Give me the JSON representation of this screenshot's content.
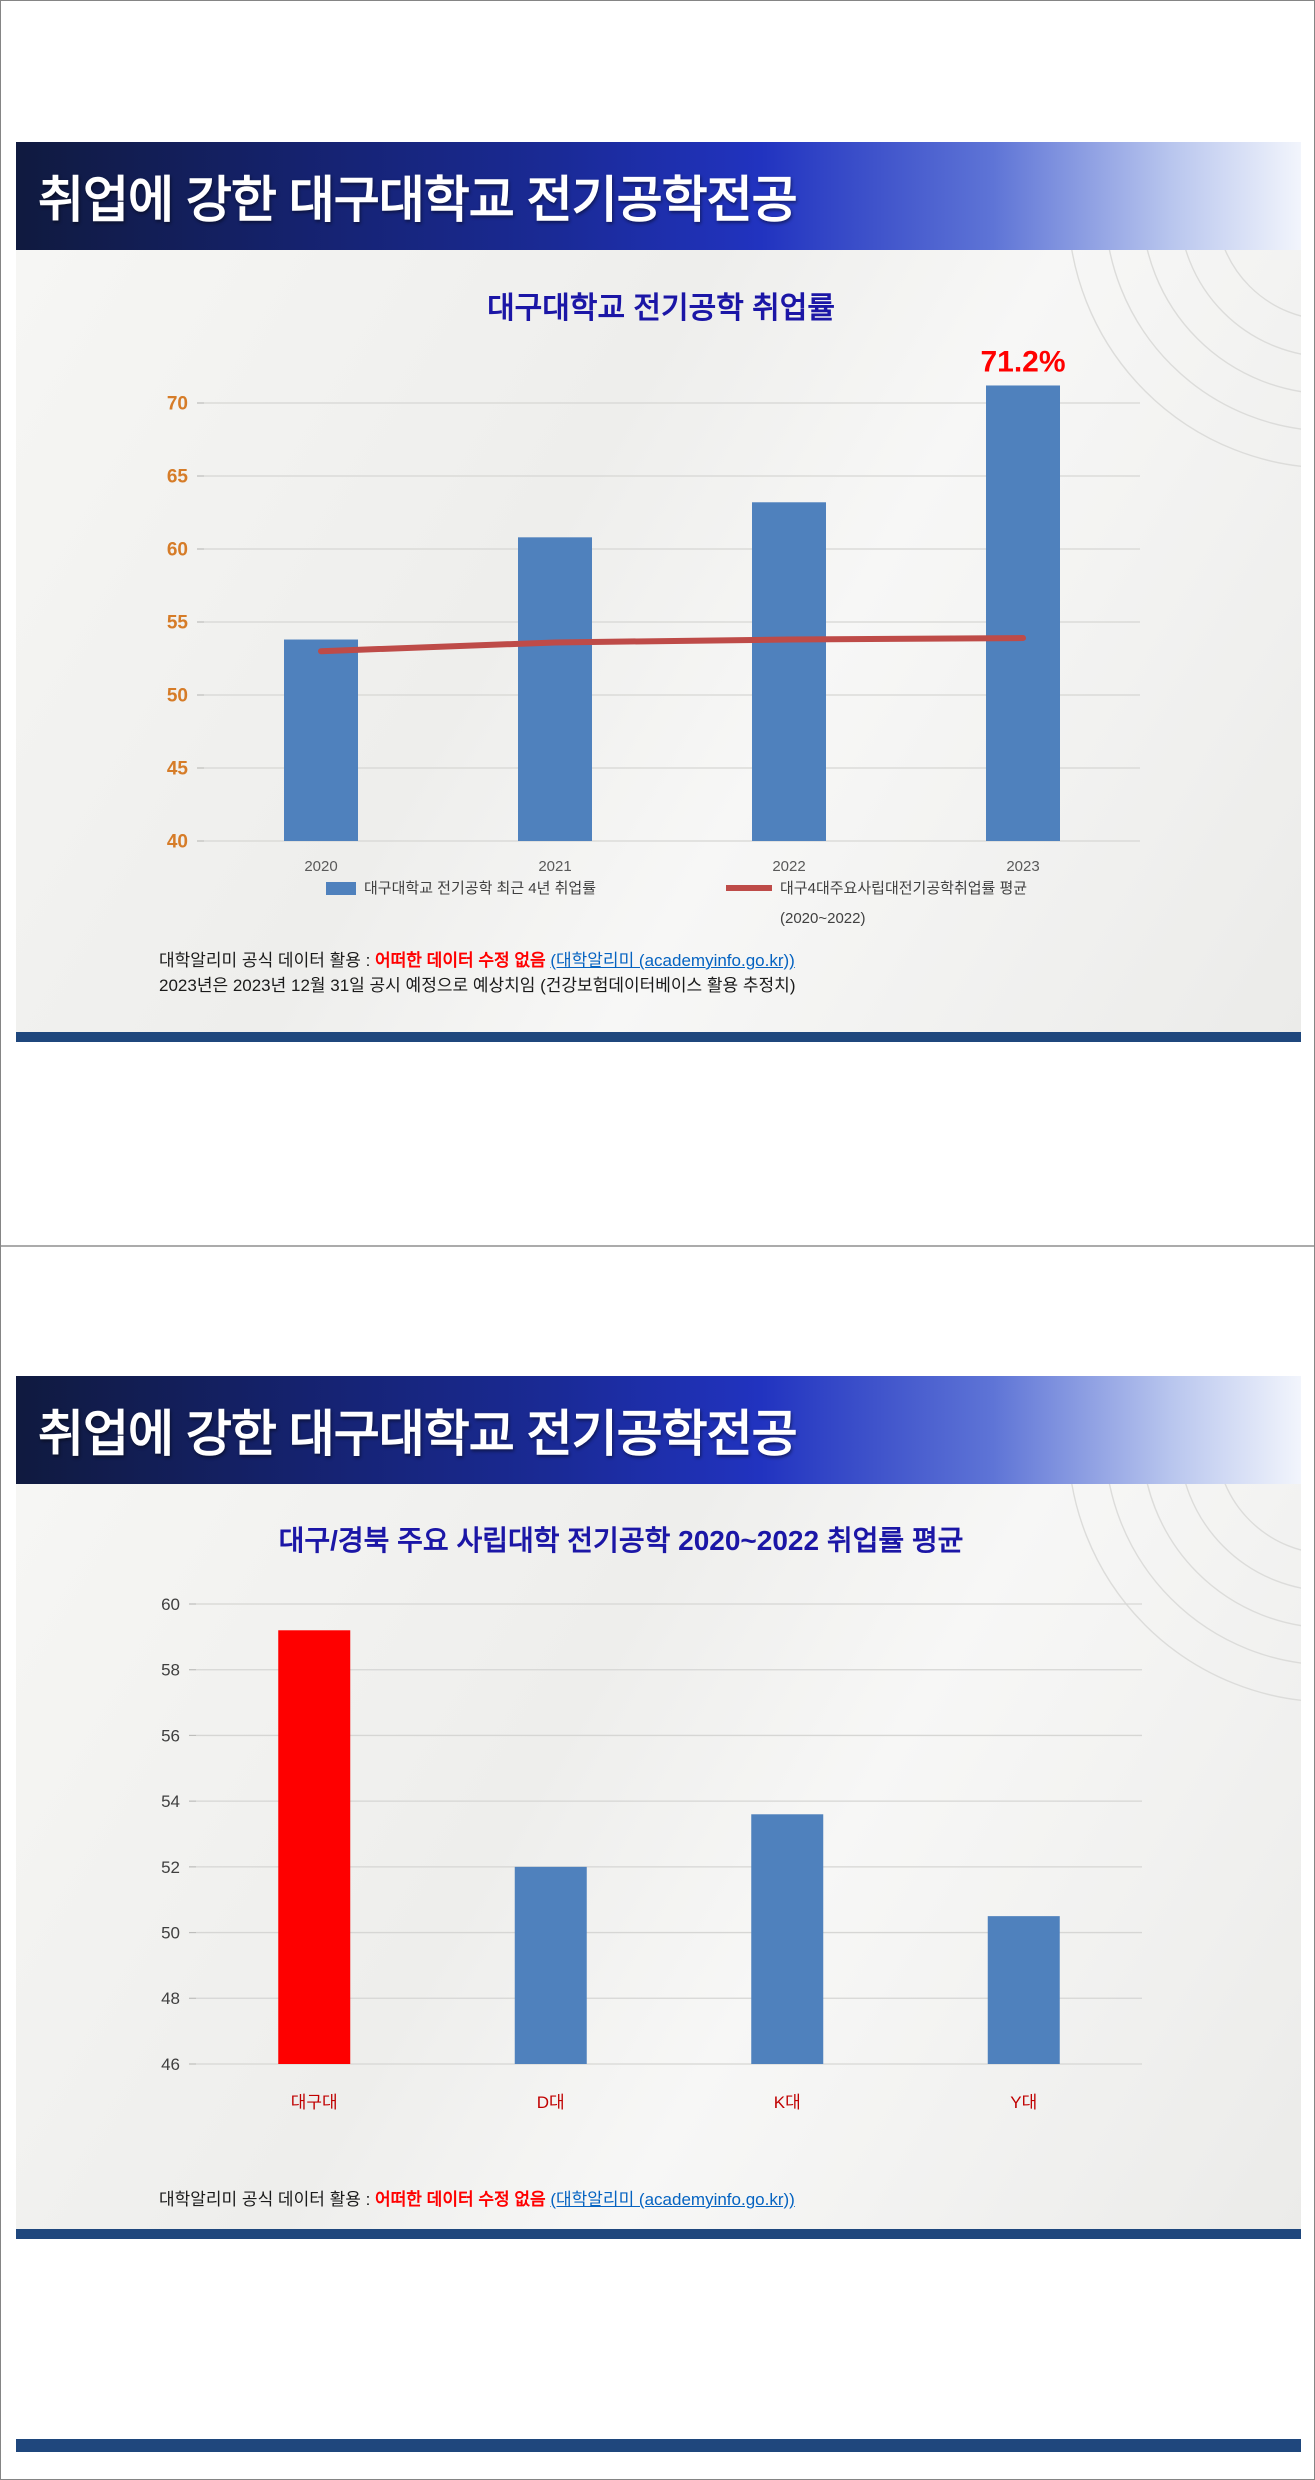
{
  "slides": [
    {
      "banner_title": "취업에 강한 대구대학교 전기공학전공",
      "footnote": {
        "prefix": "대학알리미 공식 데이터 활용 : ",
        "emphasis": "어떠한 데이터 수정 없음",
        "link": "(대학알리미 (academyinfo.go.kr))",
        "line2": "2023년은 2023년 12월 31일 공시 예정으로 예상치임 (건강보험데이터베이스 활용 추정치)"
      }
    },
    {
      "banner_title": "취업에 강한 대구대학교 전기공학전공",
      "footnote": {
        "prefix": "대학알리미 공식 데이터 활용 : ",
        "emphasis": "어떠한 데이터 수정 없음",
        "link": "(대학알리미 (academyinfo.go.kr))"
      }
    }
  ],
  "colors": {
    "bar_blue": "#4F81BD",
    "bar_red": "#FE0000",
    "line_red": "#BE4B48",
    "divider_navy": "#1f477d",
    "title_blue": "#1b16a6",
    "annotation_red": "#FF0000"
  },
  "chart_data": [
    {
      "type": "bar",
      "title": "대구대학교 전기공학 취업률",
      "title_color": "#1b16a6",
      "categories": [
        "2020",
        "2021",
        "2022",
        "2023"
      ],
      "series": [
        {
          "name": "대구대학교 전기공학 최근 4년 취업률",
          "type": "bar",
          "values": [
            53.8,
            60.8,
            63.2,
            71.2
          ],
          "color": "#4F81BD"
        },
        {
          "name": "대구4대주요사립대전기공학취업률 평균",
          "subname": "(2020~2022)",
          "type": "line",
          "values": [
            53.0,
            53.6,
            53.8,
            53.9
          ],
          "color": "#BE4B48"
        }
      ],
      "annotation": {
        "text": "71.2%",
        "category": "2023",
        "color": "#FF0000"
      },
      "ylim": [
        40,
        70
      ],
      "ytick_step": 5,
      "ytick_color": "#D67C28",
      "xtick_color": "#595959",
      "grid": true,
      "legend_position": "bottom"
    },
    {
      "type": "bar",
      "title": "대구/경북 주요 사립대학  전기공학 2020~2022 취업률 평균",
      "title_color": "#1b16a6",
      "categories": [
        "대구대",
        "D대",
        "K대",
        "Y대"
      ],
      "series": [
        {
          "name": "취업률 평균",
          "type": "bar",
          "values": [
            59.2,
            52.0,
            53.6,
            50.5
          ],
          "colors": [
            "#FE0000",
            "#4F81BD",
            "#4F81BD",
            "#4F81BD"
          ]
        }
      ],
      "ylim": [
        46,
        60
      ],
      "ytick_step": 2,
      "ytick_color": "#3f3f3f",
      "xtick_color": "#C00000",
      "grid": true,
      "legend_position": "none"
    }
  ]
}
